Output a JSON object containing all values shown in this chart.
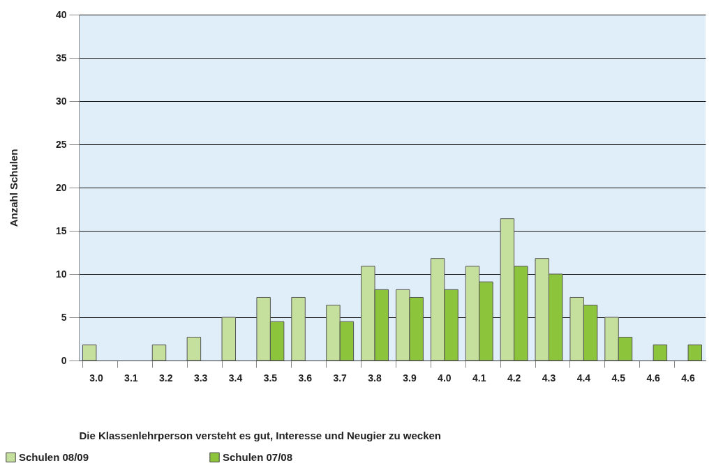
{
  "chart_data": {
    "type": "bar",
    "xlabel": "Die Klassenlehrperson versteht es gut, Interesse und Neugier zu wecken",
    "ylabel": "Anzahl Schulen",
    "categories": [
      "3.0",
      "3.1",
      "3.2",
      "3.3",
      "3.4",
      "3.5",
      "3.6",
      "3.7",
      "3.8",
      "3.9",
      "4.0",
      "4.1",
      "4.2",
      "4.3",
      "4.4",
      "4.5",
      "4.6",
      "4.6"
    ],
    "series": [
      {
        "name": "Schulen 08/09",
        "color": "#c5e09d",
        "values": [
          1.8,
          null,
          1.8,
          2.7,
          5,
          7.3,
          7.3,
          6.4,
          10.9,
          8.2,
          11.8,
          10.9,
          16.4,
          11.8,
          7.3,
          5,
          null,
          null
        ]
      },
      {
        "name": "Schulen 07/08",
        "color": "#8cc43c",
        "values": [
          null,
          null,
          null,
          null,
          null,
          4.5,
          null,
          4.5,
          8.2,
          7.3,
          8.2,
          9.1,
          10.9,
          10,
          6.4,
          2.7,
          1.8,
          1.8
        ]
      }
    ],
    "ylim": [
      0,
      40
    ],
    "yticks": [
      0,
      5,
      10,
      15,
      20,
      25,
      30,
      35,
      40
    ],
    "grid": "y",
    "legend": "bottom left"
  }
}
